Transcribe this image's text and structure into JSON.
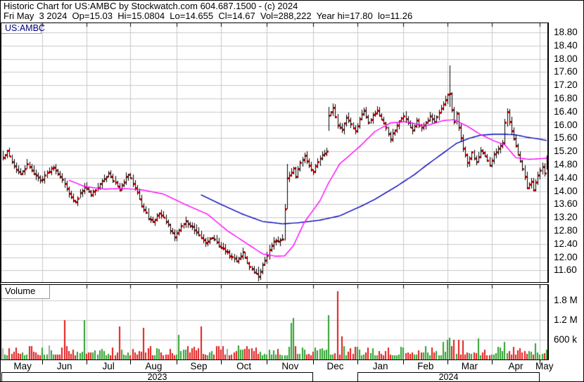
{
  "header": {
    "line1": "Historic Chart for US:AMBC by Stockwatch.com 604.687.1500 - (c) 2024",
    "line2": "Fri May  3 2024  Op=15.03  Hi=15.0804  Lo=14.655  Cl=14.67  Vol=288,222  Year hi=17.80  lo=11.26"
  },
  "price_panel": {
    "symbol_label": "US:AMBC"
  },
  "volume_panel": {
    "label": "Volume"
  },
  "price_axis": {
    "labels": [
      "18.80",
      "18.40",
      "18.00",
      "17.60",
      "17.20",
      "16.80",
      "16.40",
      "16.00",
      "15.60",
      "15.20",
      "14.80",
      "14.40",
      "14.00",
      "13.60",
      "13.20",
      "12.80",
      "12.40",
      "12.00",
      "11.60"
    ]
  },
  "volume_axis": {
    "labels": [
      "1.8 M",
      "1.2 M",
      "600 k"
    ],
    "values_thousands": [
      1800,
      1200,
      600
    ]
  },
  "time_axis": {
    "months": [
      {
        "label": "May",
        "days": 18
      },
      {
        "label": "Jun",
        "days": 20
      },
      {
        "label": "Jul",
        "days": 20
      },
      {
        "label": "Aug",
        "days": 21
      },
      {
        "label": "Sep",
        "days": 20
      },
      {
        "label": "Oct",
        "days": 21
      },
      {
        "label": "Nov",
        "days": 21
      },
      {
        "label": "Dec",
        "days": 20
      },
      {
        "label": "Jan",
        "days": 21
      },
      {
        "label": "Feb",
        "days": 20
      },
      {
        "label": "Mar",
        "days": 20
      },
      {
        "label": "Apr",
        "days": 22
      },
      {
        "label": "May",
        "days": 4
      }
    ],
    "years": [
      {
        "label": "2023",
        "from_month": 0,
        "to_month": 7
      },
      {
        "label": "2024",
        "from_month": 8,
        "to_month": 12
      }
    ]
  },
  "colors": {
    "grid": "#c9c9c9",
    "bar": "#000000",
    "close_tick": "#dd0000",
    "ma_fast": "#ff00ff",
    "ma_slow": "#0000bb",
    "vol_up": "#2fa12f",
    "vol_down": "#e11b1b",
    "vol_flat": "#a0a0a0",
    "symbol_text": "#000080"
  },
  "chart_data": {
    "type": "ohlc+volume",
    "title": "Historic Chart for US:AMBC by Stockwatch.com 604.687.1500 - (c) 2024",
    "symbol": "US:AMBC",
    "last_day_summary": {
      "date": "Fri May 3 2024",
      "open": 15.03,
      "high": 15.0804,
      "low": 14.655,
      "close": 14.67,
      "volume": 288222,
      "year_high": 17.8,
      "year_low": 11.26
    },
    "price_range": [
      11.6,
      18.8
    ],
    "price_tick_step": 0.4,
    "volume_gridlines_thousands": [
      600,
      1200,
      1800
    ],
    "grid": true,
    "legend": false,
    "total_days": 248,
    "close_anchors": [
      [
        0,
        15.0
      ],
      [
        2,
        15.2
      ],
      [
        5,
        14.75
      ],
      [
        8,
        14.5
      ],
      [
        11,
        14.8
      ],
      [
        14,
        14.55
      ],
      [
        17,
        14.32
      ],
      [
        20,
        14.55
      ],
      [
        23,
        14.75
      ],
      [
        26,
        14.45
      ],
      [
        29,
        14.1
      ],
      [
        31,
        13.8
      ],
      [
        33,
        13.65
      ],
      [
        35,
        13.95
      ],
      [
        37,
        14.15
      ],
      [
        40,
        13.9
      ],
      [
        43,
        14.12
      ],
      [
        46,
        14.38
      ],
      [
        48,
        14.55
      ],
      [
        51,
        14.25
      ],
      [
        53,
        14.02
      ],
      [
        55,
        14.3
      ],
      [
        57,
        14.5
      ],
      [
        59,
        14.25
      ],
      [
        61,
        14.0
      ],
      [
        63,
        13.55
      ],
      [
        66,
        13.2
      ],
      [
        68,
        13.05
      ],
      [
        71,
        13.35
      ],
      [
        74,
        13.1
      ],
      [
        76,
        12.8
      ],
      [
        78,
        12.62
      ],
      [
        81,
        12.95
      ],
      [
        83,
        13.08
      ],
      [
        86,
        12.9
      ],
      [
        89,
        12.65
      ],
      [
        92,
        12.45
      ],
      [
        95,
        12.6
      ],
      [
        98,
        12.35
      ],
      [
        101,
        12.2
      ],
      [
        104,
        12.0
      ],
      [
        106,
        11.9
      ],
      [
        109,
        12.15
      ],
      [
        112,
        11.7
      ],
      [
        116,
        11.42
      ],
      [
        118,
        11.75
      ],
      [
        120,
        12.1
      ],
      [
        123,
        12.45
      ],
      [
        127,
        12.55
      ],
      [
        128,
        13.47
      ],
      [
        129,
        14.4
      ],
      [
        131,
        14.55
      ],
      [
        132,
        14.7
      ],
      [
        133,
        14.45
      ],
      [
        135,
        14.9
      ],
      [
        137,
        15.05
      ],
      [
        139,
        14.75
      ],
      [
        141,
        14.6
      ],
      [
        143,
        14.9
      ],
      [
        145,
        15.1
      ],
      [
        147,
        15.2
      ],
      [
        148,
        16.3
      ],
      [
        150,
        16.5
      ],
      [
        152,
        16.0
      ],
      [
        154,
        15.85
      ],
      [
        156,
        16.25
      ],
      [
        158,
        16.05
      ],
      [
        160,
        15.8
      ],
      [
        162,
        16.2
      ],
      [
        164,
        16.45
      ],
      [
        166,
        16.1
      ],
      [
        168,
        16.3
      ],
      [
        170,
        16.45
      ],
      [
        172,
        16.15
      ],
      [
        174,
        15.9
      ],
      [
        176,
        15.6
      ],
      [
        178,
        15.85
      ],
      [
        180,
        16.1
      ],
      [
        182,
        16.3
      ],
      [
        184,
        16.05
      ],
      [
        186,
        15.85
      ],
      [
        188,
        16.1
      ],
      [
        190,
        15.9
      ],
      [
        192,
        16.05
      ],
      [
        194,
        16.3
      ],
      [
        196,
        16.1
      ],
      [
        198,
        16.35
      ],
      [
        200,
        16.6
      ],
      [
        202,
        16.9
      ],
      [
        203,
        16.95
      ],
      [
        204,
        16.45
      ],
      [
        205,
        16.1
      ],
      [
        206,
        16.35
      ],
      [
        207,
        15.9
      ],
      [
        209,
        15.3
      ],
      [
        211,
        14.85
      ],
      [
        213,
        15.15
      ],
      [
        215,
        14.9
      ],
      [
        217,
        15.25
      ],
      [
        219,
        15.05
      ],
      [
        221,
        14.75
      ],
      [
        223,
        15.1
      ],
      [
        225,
        15.3
      ],
      [
        227,
        15.5
      ],
      [
        228,
        16.1
      ],
      [
        229,
        16.4
      ],
      [
        231,
        15.8
      ],
      [
        233,
        15.35
      ],
      [
        235,
        14.9
      ],
      [
        237,
        14.45
      ],
      [
        238,
        14.1
      ],
      [
        240,
        14.3
      ],
      [
        241,
        14.05
      ],
      [
        243,
        14.5
      ],
      [
        245,
        14.75
      ],
      [
        246,
        14.55
      ],
      [
        247,
        14.67
      ]
    ],
    "bar_overrides": {
      "116": [
        11.6,
        11.72,
        11.26,
        11.42
      ],
      "128": [
        12.6,
        13.6,
        12.5,
        13.47
      ],
      "129": [
        13.52,
        14.82,
        13.45,
        14.4
      ],
      "148": [
        15.9,
        16.55,
        15.82,
        16.3
      ],
      "203": [
        16.85,
        17.8,
        16.55,
        16.95
      ],
      "229": [
        16.05,
        16.5,
        15.95,
        16.4
      ],
      "247": [
        15.03,
        15.0804,
        14.655,
        14.67
      ]
    },
    "ma_fast_points": [
      [
        30,
        14.33
      ],
      [
        37,
        14.14
      ],
      [
        46,
        14.06
      ],
      [
        55,
        14.08
      ],
      [
        64,
        14.03
      ],
      [
        73,
        13.91
      ],
      [
        83,
        13.59
      ],
      [
        93,
        13.3
      ],
      [
        102,
        12.8
      ],
      [
        110,
        12.45
      ],
      [
        118,
        12.1
      ],
      [
        124,
        12.03
      ],
      [
        128,
        12.04
      ],
      [
        132,
        12.35
      ],
      [
        137,
        13.06
      ],
      [
        144,
        13.7
      ],
      [
        148,
        14.25
      ],
      [
        153,
        14.82
      ],
      [
        162,
        15.34
      ],
      [
        169,
        15.8
      ],
      [
        176,
        16.06
      ],
      [
        183,
        16.1
      ],
      [
        192,
        15.97
      ],
      [
        200,
        16.13
      ],
      [
        205,
        16.16
      ],
      [
        211,
        15.96
      ],
      [
        217,
        15.71
      ],
      [
        223,
        15.52
      ],
      [
        228,
        15.4
      ],
      [
        233,
        15.01
      ],
      [
        239,
        14.96
      ],
      [
        247,
        14.99
      ]
    ],
    "ma_slow_points": [
      [
        90,
        13.89
      ],
      [
        99,
        13.6
      ],
      [
        109,
        13.3
      ],
      [
        118,
        13.08
      ],
      [
        127,
        13.01
      ],
      [
        134,
        13.04
      ],
      [
        144,
        13.12
      ],
      [
        153,
        13.25
      ],
      [
        163,
        13.55
      ],
      [
        169,
        13.75
      ],
      [
        179,
        14.15
      ],
      [
        187,
        14.5
      ],
      [
        192,
        14.76
      ],
      [
        199,
        15.1
      ],
      [
        206,
        15.44
      ],
      [
        212,
        15.6
      ],
      [
        217,
        15.69
      ],
      [
        223,
        15.72
      ],
      [
        228,
        15.72
      ],
      [
        233,
        15.7
      ],
      [
        238,
        15.63
      ],
      [
        243,
        15.58
      ],
      [
        247,
        15.53
      ]
    ],
    "volume_spikes_thousands": {
      "28": 1180,
      "37": 1200,
      "53": 1000,
      "64": 950,
      "80": 750,
      "90": 1000,
      "131": 1100,
      "132": 1250,
      "148": 1350,
      "152": 2060,
      "154": 700,
      "200": 520,
      "202": 600,
      "203": 650,
      "205": 580,
      "207": 600,
      "209": 560,
      "216": 630,
      "228": 520,
      "242": 480,
      "247": 288
    },
    "volume_base_range_thousands": [
      110,
      410
    ]
  }
}
